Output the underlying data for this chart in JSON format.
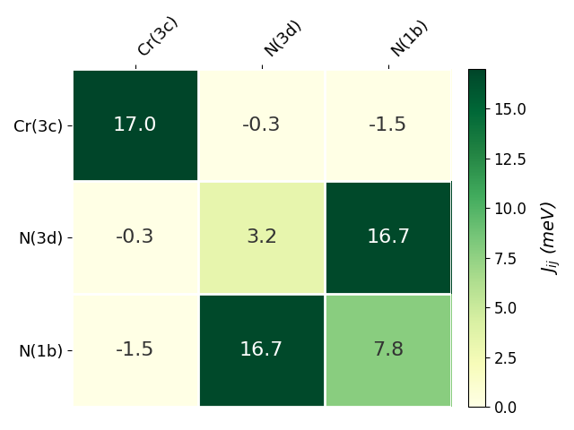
{
  "labels": [
    "Cr(3c)",
    "N(3d)",
    "N(1b)"
  ],
  "matrix": [
    [
      17.0,
      -0.3,
      -1.5
    ],
    [
      -0.3,
      3.2,
      16.7
    ],
    [
      -1.5,
      16.7,
      7.8
    ]
  ],
  "vmin": 0.0,
  "vmax": 17.0,
  "cmap": "YlGn",
  "colorbar_label": "$J_{ij}$ (meV)",
  "colorbar_ticks": [
    0.0,
    2.5,
    5.0,
    7.5,
    10.0,
    12.5,
    15.0
  ],
  "text_threshold": 8.0,
  "text_color_dark": "white",
  "text_color_light": "#333333",
  "fontsize_annot": 16,
  "fontsize_ticks": 13,
  "fontsize_cbar": 14,
  "figsize": [
    6.4,
    4.8
  ],
  "dpi": 100
}
